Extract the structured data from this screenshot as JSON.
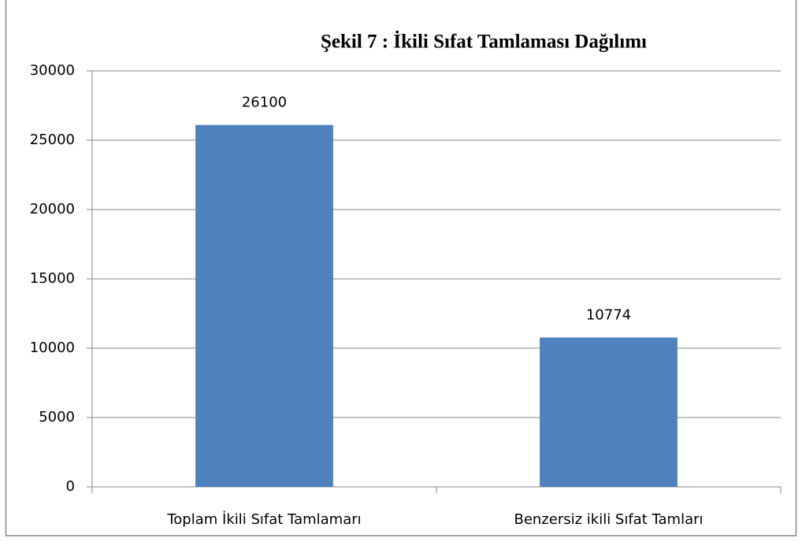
{
  "chart_data": {
    "type": "bar",
    "title": "Şekil 7 : İkili Sıfat Tamlaması Dağılımı",
    "categories": [
      "Toplam İkili Sıfat Tamlamarı",
      "Benzersiz ikili Sıfat Tamları"
    ],
    "values": [
      26100,
      10774
    ],
    "color": "#4f81bd",
    "ylim": [
      0,
      30000
    ],
    "yticks": [
      0,
      5000,
      10000,
      15000,
      20000,
      25000,
      30000
    ],
    "grid": true
  }
}
